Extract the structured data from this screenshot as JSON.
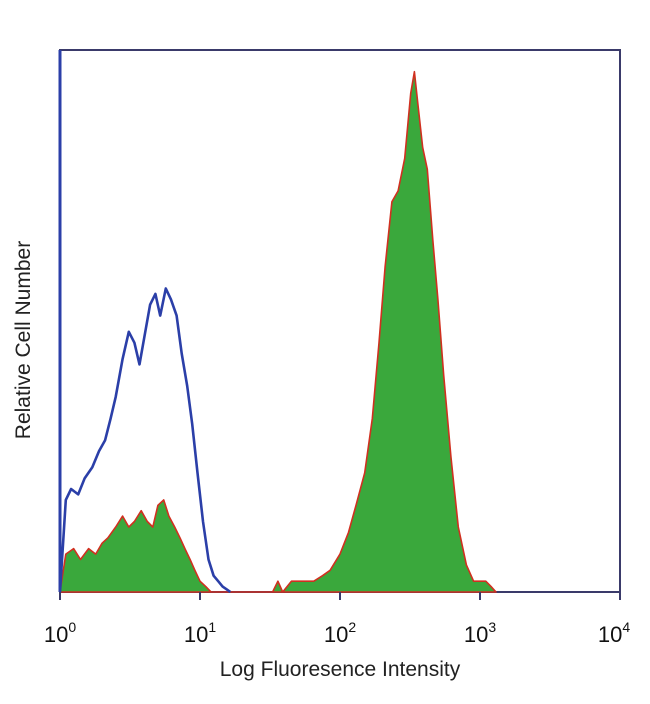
{
  "chart_data": {
    "type": "area",
    "title": "",
    "xlabel": "Log Fluoresence Intensity",
    "ylabel": "Relative Cell Number",
    "x_scale": "log",
    "xlim": [
      1,
      10000
    ],
    "ylim": [
      0,
      100
    ],
    "grid": false,
    "legend": "none",
    "x_ticks": [
      {
        "value": 1,
        "base": "10",
        "exp": "0"
      },
      {
        "value": 10,
        "base": "10",
        "exp": "1"
      },
      {
        "value": 100,
        "base": "10",
        "exp": "2"
      },
      {
        "value": 1000,
        "base": "10",
        "exp": "3"
      },
      {
        "value": 10000,
        "base": "10",
        "exp": "4"
      }
    ],
    "series": [
      {
        "style": "outline",
        "color": "#2b3fa8",
        "x": [
          1.0,
          1.1,
          1.2,
          1.35,
          1.5,
          1.7,
          1.9,
          2.1,
          2.3,
          2.5,
          2.8,
          3.1,
          3.4,
          3.7,
          4.0,
          4.4,
          4.8,
          5.2,
          5.7,
          6.2,
          6.8,
          7.4,
          8.1,
          8.8,
          9.6,
          10.5,
          11.5,
          12.5,
          13.5,
          14.5,
          15.5,
          16.5
        ],
        "y": [
          0,
          17,
          19,
          18,
          21,
          23,
          26,
          28,
          32,
          36,
          43,
          48,
          46,
          42,
          47,
          53,
          55,
          51,
          56,
          54,
          51,
          44,
          38,
          31,
          22,
          13,
          6,
          3,
          2,
          1,
          0.5,
          0
        ]
      },
      {
        "style": "filled",
        "color": "#3aa83c",
        "edge_color": "#d03020",
        "x": [
          1.0,
          1.1,
          1.25,
          1.4,
          1.6,
          1.8,
          2.0,
          2.2,
          2.5,
          2.8,
          3.1,
          3.4,
          3.8,
          4.2,
          4.6,
          5.0,
          5.5,
          6.0,
          6.6,
          7.2,
          7.8,
          8.5,
          9.2,
          10.0,
          11.0,
          12.0,
          33,
          36,
          39,
          45,
          55,
          65,
          75,
          85,
          100,
          115,
          130,
          150,
          170,
          190,
          210,
          235,
          260,
          290,
          320,
          340,
          360,
          390,
          420,
          460,
          500,
          550,
          620,
          700,
          800,
          900,
          1000,
          1100,
          1200,
          1300
        ],
        "y": [
          0,
          7,
          8,
          6,
          8,
          7,
          9,
          10,
          12,
          14,
          12,
          13,
          15,
          13,
          12,
          16,
          17,
          14,
          12,
          10,
          8,
          6,
          4,
          2,
          1,
          0,
          0,
          2,
          0,
          2,
          2,
          2,
          3,
          4,
          7,
          11,
          16,
          22,
          32,
          46,
          60,
          72,
          74,
          80,
          92,
          96,
          90,
          82,
          78,
          65,
          54,
          40,
          25,
          12,
          5,
          2,
          2,
          2,
          1,
          0
        ]
      }
    ]
  }
}
